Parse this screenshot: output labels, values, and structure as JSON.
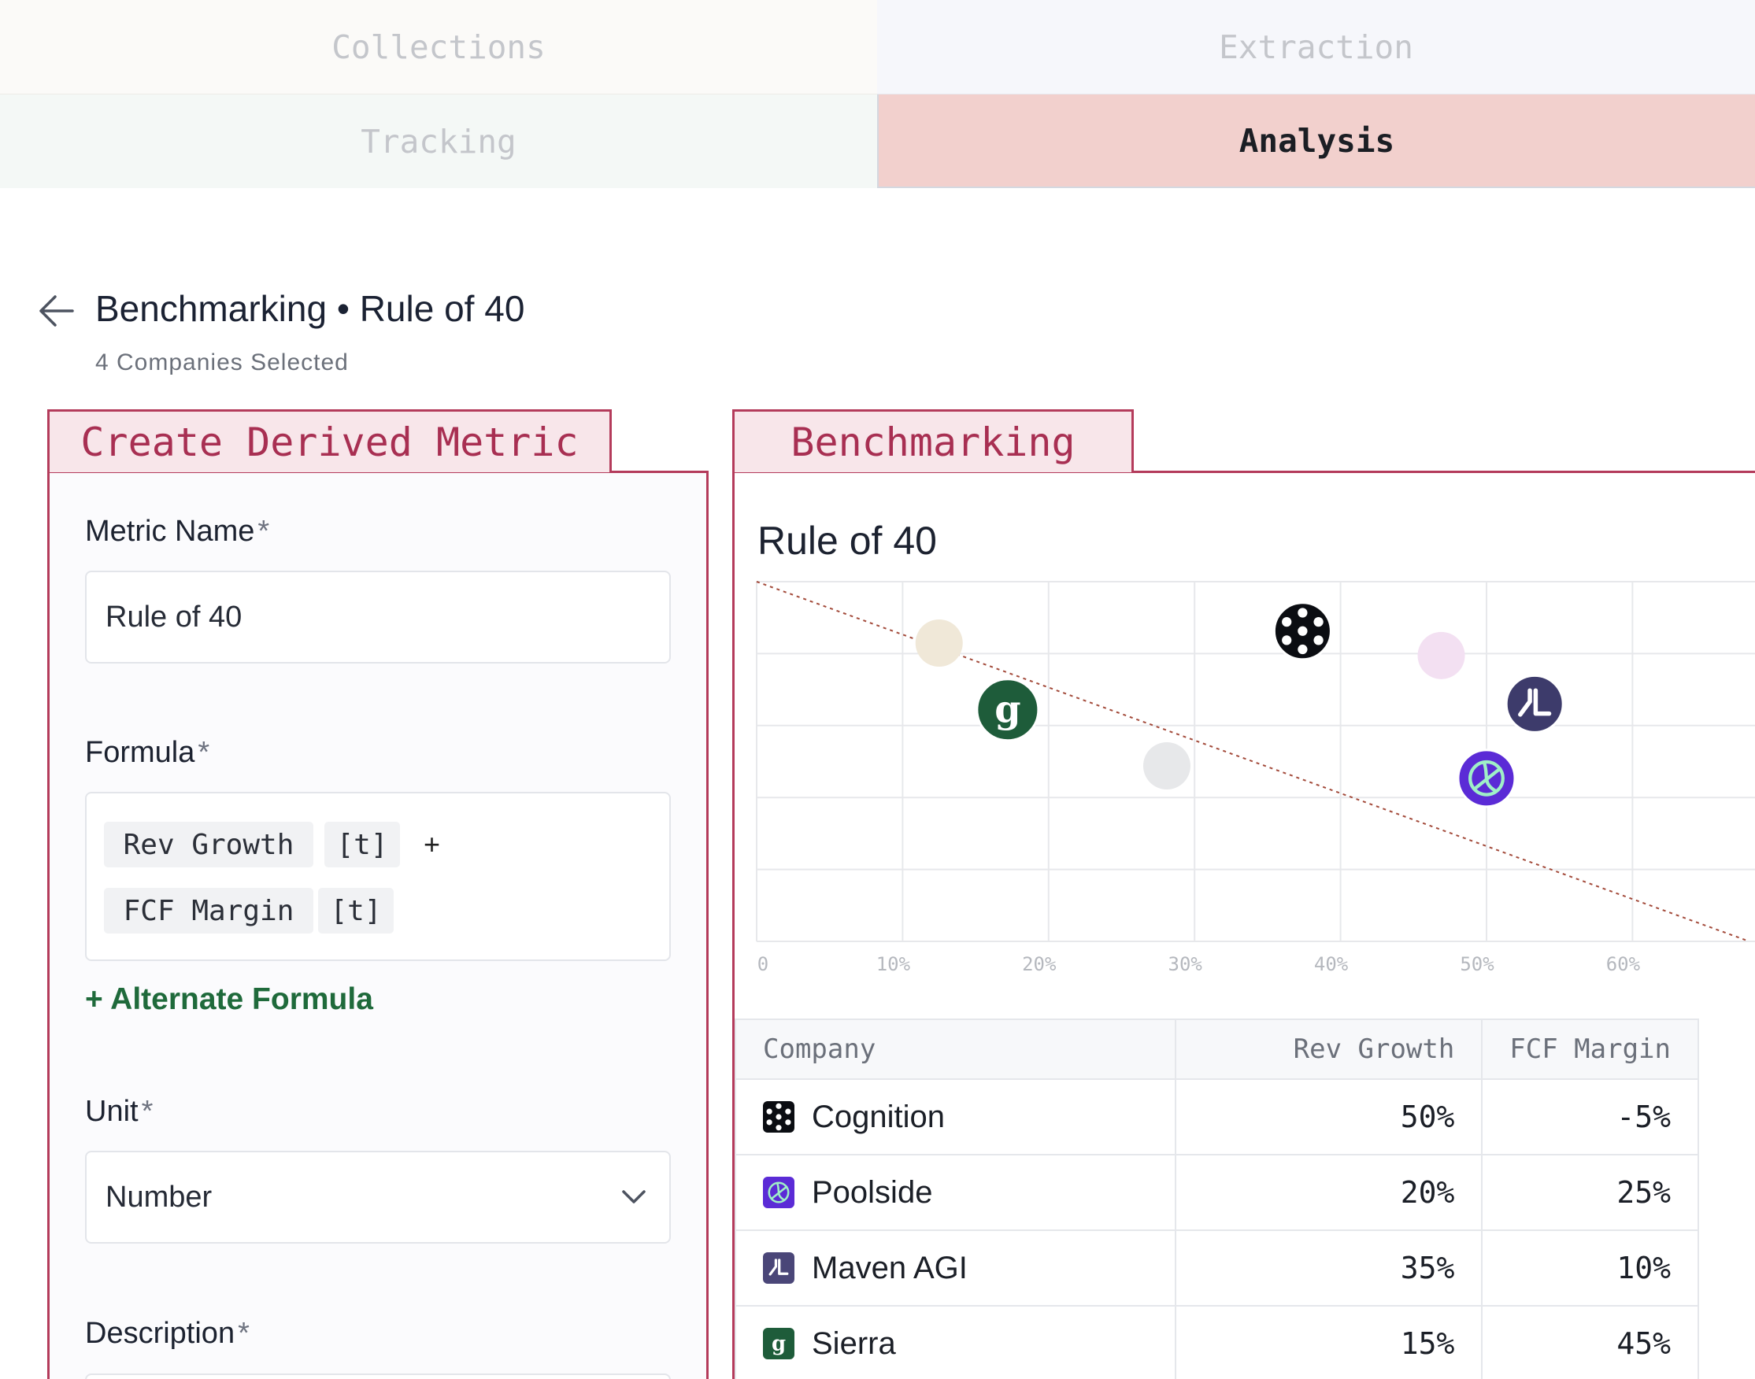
{
  "tabs": {
    "collections": "Collections",
    "extraction": "Extraction",
    "tracking": "Tracking",
    "analysis": "Analysis"
  },
  "header": {
    "title": "Benchmarking • Rule of 40",
    "subtitle": "4 Companies Selected"
  },
  "panels": {
    "left_tab": "Create Derived Metric",
    "right_tab": "Benchmarking"
  },
  "form": {
    "metric_name_label": "Metric Name",
    "required_mark": "*",
    "metric_name_value": "Rule of 40",
    "formula_label": "Formula",
    "formula_tokens": {
      "rev_growth": "Rev Growth",
      "t1": "[t]",
      "plus": "+",
      "fcf_margin": "FCF Margin",
      "t2": "[t]"
    },
    "alternate_formula": "+ Alternate Formula",
    "unit_label": "Unit",
    "unit_value": "Number",
    "description_label": "Description"
  },
  "chart_data": {
    "type": "scatter",
    "title": "Rule of 40",
    "xlabel": "",
    "ylabel": "",
    "x_ticks": [
      "0",
      "10%",
      "20%",
      "30%",
      "40%",
      "50%",
      "60%"
    ],
    "xlim": [
      0,
      68
    ],
    "ylim": [
      -22,
      53
    ],
    "grid": true,
    "reference_line": {
      "label": "",
      "x": [
        0,
        68
      ],
      "y": [
        53,
        -22
      ],
      "color": "#a34a3a",
      "style": "dotted"
    },
    "points": [
      {
        "company": "Cognition",
        "x": 37.4,
        "y": 42.7,
        "logo": "cognition-logo",
        "color": "#0b0d12"
      },
      {
        "company": "Poolside",
        "x": 50,
        "y": 12,
        "logo": "poolside-logo",
        "color": "#5b2bd6"
      },
      {
        "company": "Maven AGI",
        "x": 53.3,
        "y": 27.5,
        "logo": "maven-logo",
        "color": "#3d3b6b"
      },
      {
        "company": "Sierra",
        "x": 17.2,
        "y": 26.3,
        "logo": "sierra-logo",
        "color": "#1e5c3a"
      },
      {
        "company": "",
        "x": 12.5,
        "y": 40.2,
        "logo": "faded-dot",
        "color": "#f0e8d8"
      },
      {
        "company": "",
        "x": 46.9,
        "y": 37.6,
        "logo": "faded-dot",
        "color": "#f3e0f2"
      },
      {
        "company": "",
        "x": 28.1,
        "y": 14.6,
        "logo": "faded-dot",
        "color": "#e7e8ea"
      }
    ]
  },
  "table": {
    "headers": [
      "Company",
      "Rev Growth",
      "FCF Margin"
    ],
    "rows": [
      {
        "company": "Cognition",
        "rev_growth": "50%",
        "fcf_margin": "-5%",
        "logo": "cognition-logo",
        "color": "#0b0d12"
      },
      {
        "company": "Poolside",
        "rev_growth": "20%",
        "fcf_margin": "25%",
        "logo": "poolside-logo",
        "color": "#5b2bd6"
      },
      {
        "company": "Maven AGI",
        "rev_growth": "35%",
        "fcf_margin": "10%",
        "logo": "maven-logo",
        "color": "#4a4678"
      },
      {
        "company": "Sierra",
        "rev_growth": "15%",
        "fcf_margin": "45%",
        "logo": "sierra-logo",
        "color": "#1e5c3a"
      }
    ]
  },
  "colors": {
    "accent": "#b43b5b",
    "active_tab": "#f2d0cd",
    "link_green": "#1f6a3b"
  }
}
